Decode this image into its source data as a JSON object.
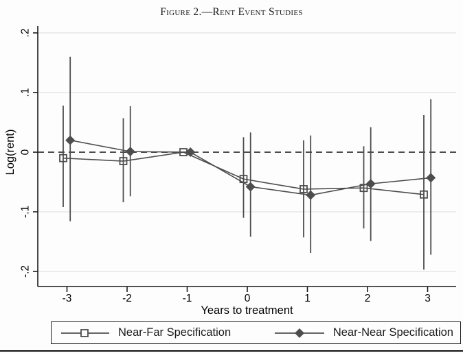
{
  "figure": {
    "title": "Figure 2.—Rent Event Studies"
  },
  "chart_data": {
    "type": "line",
    "subtype": "event-study with confidence intervals",
    "title": "Figure 2.—Rent Event Studies",
    "xlabel": "Years to treatment",
    "ylabel": "Log(rent)",
    "x_ticks": [
      -3,
      -2,
      -1,
      0,
      1,
      2,
      3
    ],
    "y_ticks": [
      ".2",
      ".1",
      "0",
      "-.1",
      "-.2"
    ],
    "y_tick_values": [
      0.2,
      0.1,
      0,
      -0.1,
      -0.2
    ],
    "xlim": [
      -3.5,
      3.5
    ],
    "ylim": [
      -0.225,
      0.21
    ],
    "grid": true,
    "zero_line": {
      "value": 0,
      "style": "dashed"
    },
    "legend_position": "bottom",
    "series": [
      {
        "name": "Near-Far Specification",
        "marker": "hollow-square",
        "x": [
          -3,
          -2,
          -1,
          0,
          1,
          2,
          3
        ],
        "estimates": [
          -0.01,
          -0.015,
          0.0,
          -0.045,
          -0.062,
          -0.06,
          -0.071
        ],
        "ci_low": [
          -0.092,
          -0.084,
          0.0,
          -0.11,
          -0.143,
          -0.128,
          -0.197
        ],
        "ci_high": [
          0.078,
          0.057,
          0.0,
          0.025,
          0.02,
          0.01,
          0.062
        ]
      },
      {
        "name": "Near-Near Specification",
        "marker": "filled-diamond",
        "x": [
          -3,
          -2,
          -1,
          0,
          1,
          2,
          3
        ],
        "estimates": [
          0.02,
          0.001,
          0.0,
          -0.058,
          -0.072,
          -0.053,
          -0.043
        ],
        "ci_low": [
          -0.116,
          -0.074,
          0.0,
          -0.142,
          -0.169,
          -0.149,
          -0.172
        ],
        "ci_high": [
          0.16,
          0.077,
          0.0,
          0.033,
          0.028,
          0.042,
          0.089
        ]
      }
    ],
    "colors": {
      "series": "#4d4d4d",
      "zero_dash": "#4d4d4d",
      "grid": "#e3e3e3",
      "axis": "#1a1a1a",
      "text": "#000000"
    }
  }
}
